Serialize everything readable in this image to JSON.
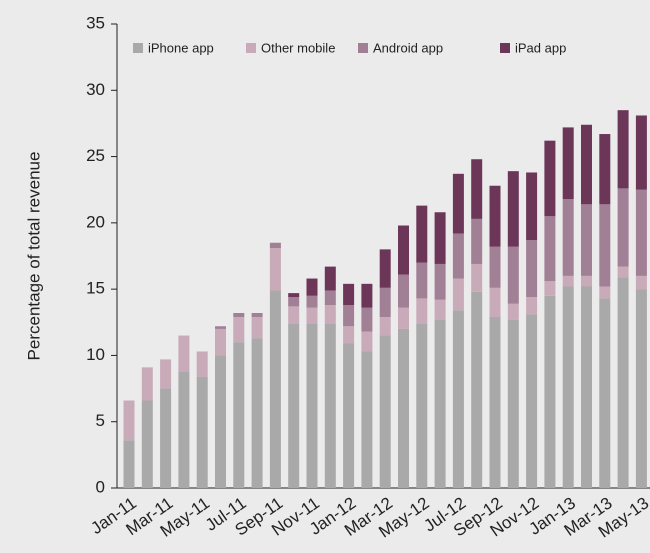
{
  "chart_data": {
    "type": "stacked_bar",
    "y_label": "Percentage of total revenue",
    "categories": [
      "Jan-11",
      null,
      "Mar-11",
      null,
      "May-11",
      null,
      "Jul-11",
      null,
      "Sep-11",
      null,
      "Nov-11",
      null,
      "Jan-12",
      null,
      "Mar-12",
      null,
      "May-12",
      null,
      "Jul-12",
      null,
      "Sep-12",
      null,
      "Nov-12",
      null,
      "Jan-13",
      null,
      "Mar-13",
      null,
      "May-13"
    ],
    "series": [
      {
        "name": "iPhone app",
        "color": "#a9a9a9",
        "values": [
          3.6,
          6.6,
          7.5,
          8.8,
          8.4,
          10.0,
          11.0,
          11.3,
          14.9,
          12.4,
          12.4,
          12.4,
          10.9,
          10.3,
          11.5,
          12.0,
          12.4,
          12.7,
          13.4,
          14.8,
          12.9,
          12.7,
          13.1,
          14.5,
          15.2,
          15.2,
          14.3,
          15.9,
          15.0
        ]
      },
      {
        "name": "Other mobile",
        "color": "#c9aab9",
        "values": [
          3.0,
          2.5,
          2.2,
          2.7,
          1.9,
          2.0,
          1.9,
          1.6,
          3.2,
          1.3,
          1.2,
          1.4,
          1.3,
          1.5,
          1.4,
          1.6,
          1.9,
          1.5,
          2.4,
          2.1,
          2.2,
          1.2,
          1.3,
          1.1,
          0.8,
          0.8,
          0.9,
          0.8,
          1.0
        ]
      },
      {
        "name": "Android app",
        "color": "#a17f95",
        "values": [
          0,
          0,
          0,
          0,
          0,
          0.2,
          0.3,
          0.3,
          0.4,
          0.7,
          0.9,
          1.1,
          1.6,
          1.8,
          2.2,
          2.5,
          2.7,
          2.7,
          3.4,
          3.4,
          3.1,
          4.3,
          4.3,
          4.9,
          5.8,
          5.4,
          6.2,
          5.9,
          6.5
        ]
      },
      {
        "name": "iPad app",
        "color": "#6c3659",
        "values": [
          0,
          0,
          0,
          0,
          0,
          0,
          0,
          0,
          0,
          0.3,
          1.3,
          1.8,
          1.6,
          1.8,
          2.9,
          3.7,
          4.3,
          3.9,
          4.5,
          4.5,
          4.6,
          5.7,
          5.1,
          5.7,
          5.4,
          6.0,
          5.3,
          5.9,
          5.6
        ]
      }
    ],
    "ylim": [
      0,
      35
    ],
    "yticks": [
      0,
      5,
      10,
      15,
      20,
      25,
      30,
      35
    ],
    "legend": "top"
  }
}
